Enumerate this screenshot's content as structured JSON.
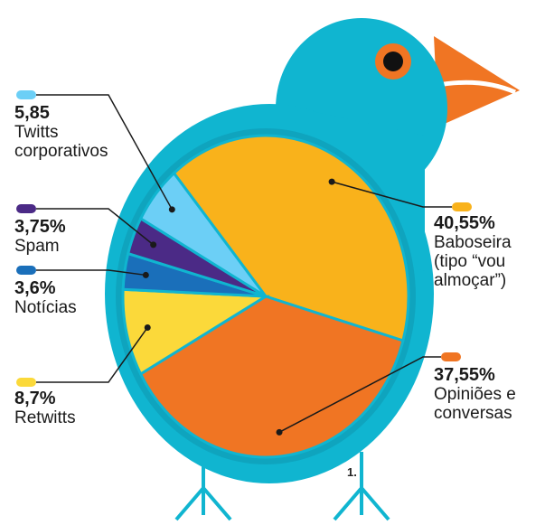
{
  "chart_data": {
    "type": "pie",
    "categories": [
      "Baboseira (tipo “vou almoçar”)",
      "Opiniões e conversas",
      "Retwitts",
      "Notícias",
      "Spam",
      "Twitts corporativos"
    ],
    "values": [
      40.55,
      37.55,
      8.7,
      3.6,
      3.75,
      5.85
    ],
    "value_labels": [
      "40,55%",
      "37,55%",
      "8,7%",
      "3,6%",
      "3,75%",
      "5,85"
    ],
    "colors": [
      "#f9b21b",
      "#f07523",
      "#fbd93a",
      "#1a6fba",
      "#4b2a86",
      "#6ccff6"
    ],
    "note": "1."
  }
}
